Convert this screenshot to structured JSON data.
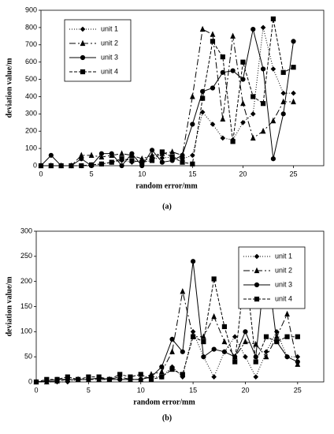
{
  "chart_data": [
    {
      "type": "line",
      "caption": "(a)",
      "xlabel": "random  error/mm",
      "ylabel": "deviation  value/m",
      "x": [
        0,
        1,
        2,
        3,
        4,
        5,
        6,
        7,
        8,
        9,
        10,
        11,
        12,
        13,
        14,
        15,
        16,
        17,
        18,
        19,
        20,
        21,
        22,
        23,
        24,
        25
      ],
      "xlim": [
        0,
        28
      ],
      "xticks": [
        0,
        5,
        10,
        15,
        20,
        25
      ],
      "ylim": [
        0,
        900
      ],
      "yticks": [
        0,
        100,
        200,
        300,
        400,
        500,
        600,
        700,
        800,
        900
      ],
      "legend": "upper left",
      "series": [
        {
          "name": "unit 1",
          "color": "#000000",
          "marker": "diamond",
          "dash": "1,2",
          "values": [
            0,
            0,
            0,
            0,
            0,
            5,
            10,
            20,
            30,
            20,
            30,
            40,
            45,
            50,
            40,
            60,
            310,
            240,
            160,
            150,
            250,
            300,
            800,
            560,
            420,
            420
          ]
        },
        {
          "name": "unit 2",
          "color": "#000000",
          "marker": "triangle",
          "dash": "8,3,2,3",
          "values": [
            0,
            0,
            0,
            0,
            60,
            60,
            50,
            60,
            70,
            60,
            40,
            60,
            70,
            80,
            60,
            400,
            790,
            760,
            270,
            750,
            360,
            160,
            200,
            260,
            370,
            370
          ]
        },
        {
          "name": "unit 3",
          "color": "#000000",
          "marker": "circle",
          "dash": "none",
          "values": [
            0,
            60,
            0,
            0,
            40,
            0,
            70,
            70,
            0,
            70,
            0,
            90,
            20,
            30,
            60,
            240,
            430,
            450,
            540,
            550,
            500,
            790,
            560,
            40,
            300,
            720
          ]
        },
        {
          "name": "unit 4",
          "color": "#000000",
          "marker": "square",
          "dash": "4,2",
          "values": [
            0,
            0,
            0,
            0,
            0,
            5,
            10,
            20,
            40,
            30,
            20,
            30,
            80,
            50,
            20,
            10,
            390,
            720,
            630,
            140,
            600,
            400,
            360,
            850,
            540,
            570
          ]
        }
      ]
    },
    {
      "type": "line",
      "caption": "(b)",
      "xlabel": "random  error/mm",
      "ylabel": "deviation  value/m",
      "x": [
        0,
        1,
        2,
        3,
        4,
        5,
        6,
        7,
        8,
        9,
        10,
        11,
        12,
        13,
        14,
        15,
        16,
        17,
        18,
        19,
        20,
        21,
        22,
        23,
        24,
        25
      ],
      "xlim": [
        0,
        27.5
      ],
      "xticks": [
        0,
        5,
        10,
        15,
        20,
        25
      ],
      "ylim": [
        0,
        300
      ],
      "yticks": [
        0,
        50,
        100,
        150,
        200,
        250,
        300
      ],
      "legend": "upper right",
      "series": [
        {
          "name": "unit 1",
          "color": "#000000",
          "marker": "diamond",
          "dash": "1,2",
          "values": [
            0,
            0,
            0,
            0,
            5,
            5,
            5,
            5,
            5,
            5,
            5,
            10,
            10,
            30,
            10,
            100,
            50,
            10,
            60,
            90,
            50,
            10,
            60,
            100,
            50,
            50
          ]
        },
        {
          "name": "unit 2",
          "color": "#000000",
          "marker": "triangle",
          "dash": "8,3,2,3",
          "values": [
            0,
            0,
            2,
            5,
            5,
            5,
            5,
            5,
            10,
            5,
            5,
            15,
            20,
            60,
            180,
            90,
            90,
            130,
            80,
            50,
            80,
            75,
            50,
            90,
            135,
            35
          ]
        },
        {
          "name": "unit 3",
          "color": "#000000",
          "marker": "circle",
          "dash": "none",
          "values": [
            0,
            2,
            5,
            5,
            5,
            5,
            8,
            5,
            5,
            5,
            5,
            10,
            30,
            85,
            60,
            240,
            50,
            65,
            60,
            50,
            100,
            50,
            250,
            80,
            50,
            40
          ]
        },
        {
          "name": "unit 4",
          "color": "#000000",
          "marker": "square",
          "dash": "4,2",
          "values": [
            0,
            5,
            5,
            10,
            5,
            10,
            10,
            5,
            15,
            10,
            15,
            5,
            10,
            25,
            15,
            90,
            80,
            205,
            110,
            40,
            230,
            40,
            90,
            80,
            90,
            90
          ]
        }
      ]
    }
  ]
}
